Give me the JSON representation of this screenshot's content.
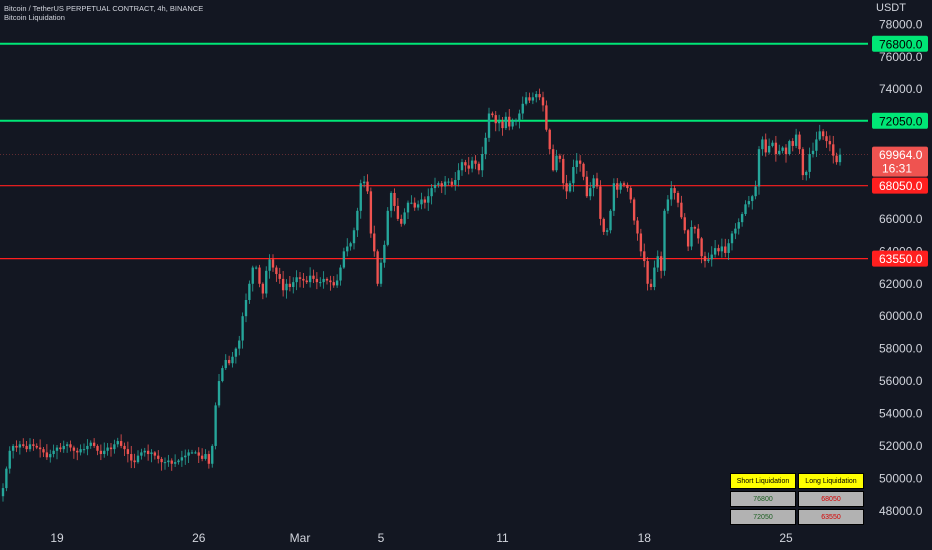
{
  "header": {
    "title": "Bitcoin / TetherUS PERPETUAL CONTRACT, 4h, BINANCE",
    "indicator": "Bitcoin Liquidation"
  },
  "currency": "USDT",
  "colors": {
    "background": "#131722",
    "up": "#26a69a",
    "down": "#ef5350",
    "short_line": "#00e676",
    "long_line": "#ff1f1f",
    "axis_text": "#d1d4dc"
  },
  "chart_data": {
    "type": "candlestick",
    "ylim": [
      47000,
      79500
    ],
    "y_ticks": [
      "48000.0",
      "50000.0",
      "52000.0",
      "54000.0",
      "56000.0",
      "58000.0",
      "60000.0",
      "62000.0",
      "64000.0",
      "66000.0",
      "68000.0",
      "70000.0",
      "72000.0",
      "74000.0",
      "76000.0",
      "78000.0"
    ],
    "x_ticks": [
      {
        "label": "19",
        "idx": 16
      },
      {
        "label": "26",
        "idx": 58
      },
      {
        "label": "Mar",
        "idx": 88
      },
      {
        "label": "5",
        "idx": 112
      },
      {
        "label": "11",
        "idx": 148
      },
      {
        "label": "18",
        "idx": 190
      },
      {
        "label": "25",
        "idx": 232
      }
    ],
    "closes": [
      49400,
      50600,
      51700,
      52000,
      51900,
      52100,
      52000,
      51800,
      52100,
      52000,
      51900,
      51800,
      51600,
      51300,
      51500,
      51700,
      51900,
      51800,
      52000,
      52100,
      51900,
      51700,
      51600,
      51800,
      51800,
      52000,
      52200,
      52000,
      51700,
      51500,
      51700,
      51900,
      51800,
      52100,
      52300,
      52000,
      51800,
      51500,
      51100,
      51000,
      51400,
      51600,
      51700,
      51500,
      51600,
      51400,
      51200,
      51000,
      51000,
      51100,
      50900,
      51000,
      51100,
      51300,
      51400,
      51600,
      51600,
      51600,
      51400,
      51200,
      51500,
      50900,
      52000,
      54500,
      56000,
      56800,
      57300,
      57100,
      57500,
      58000,
      58500,
      60000,
      61000,
      62000,
      63000,
      63000,
      62000,
      61400,
      62800,
      63500,
      63000,
      62600,
      62300,
      61600,
      62000,
      61800,
      62100,
      62400,
      62300,
      62200,
      62100,
      62500,
      62300,
      62100,
      62100,
      62300,
      62200,
      62100,
      61900,
      62200,
      63000,
      64000,
      64300,
      64500,
      65300,
      66500,
      68200,
      68300,
      67700,
      65100,
      64000,
      62000,
      63300,
      64400,
      66500,
      67600,
      66800,
      66000,
      65700,
      66400,
      67000,
      67000,
      66700,
      66900,
      67200,
      67000,
      67400,
      67900,
      68100,
      68200,
      68000,
      68300,
      68300,
      68100,
      68400,
      69000,
      69500,
      69300,
      69100,
      69600,
      69400,
      69000,
      70000,
      71000,
      72500,
      72400,
      71900,
      72000,
      71600,
      72300,
      71700,
      72000,
      72100,
      72500,
      73100,
      73500,
      73300,
      73500,
      73700,
      73500,
      73000,
      71500,
      70300,
      69000,
      69900,
      69700,
      68200,
      67700,
      68200,
      69200,
      69600,
      69400,
      68600,
      67400,
      67900,
      68500,
      68000,
      66000,
      65200,
      65300,
      66500,
      68200,
      67800,
      68200,
      68100,
      67900,
      67200,
      65900,
      65100,
      64000,
      63400,
      62000,
      61800,
      63000,
      63700,
      62800,
      66500,
      67200,
      67900,
      67600,
      67000,
      66100,
      65300,
      64300,
      65500,
      65400,
      64800,
      63700,
      63400,
      63500,
      63800,
      64200,
      64000,
      64300,
      63900,
      64500,
      65100,
      65400,
      65800,
      66300,
      66900,
      67100,
      67400,
      68000,
      70300,
      70900,
      70100,
      70500,
      70700,
      70000,
      70200,
      70400,
      70000,
      70800,
      70500,
      71200,
      70300,
      68700,
      68900,
      70000,
      70200,
      70900,
      71400,
      71100,
      70800,
      70600,
      69900,
      69500,
      69964
    ],
    "levels": [
      {
        "kind": "short",
        "value": 76800,
        "label": "76800.0"
      },
      {
        "kind": "short",
        "value": 72050,
        "label": "72050.0"
      },
      {
        "kind": "long",
        "value": 68050,
        "label": "68050.0"
      },
      {
        "kind": "long",
        "value": 63550,
        "label": "63550.0"
      }
    ],
    "last_price": {
      "value": 69964,
      "label": "69964.0",
      "countdown": "16:31"
    }
  },
  "table": {
    "headers": [
      "Short Liquidation",
      "Long Liquidation"
    ],
    "rows": [
      [
        "76800",
        "68050"
      ],
      [
        "72050",
        "63550"
      ]
    ]
  }
}
